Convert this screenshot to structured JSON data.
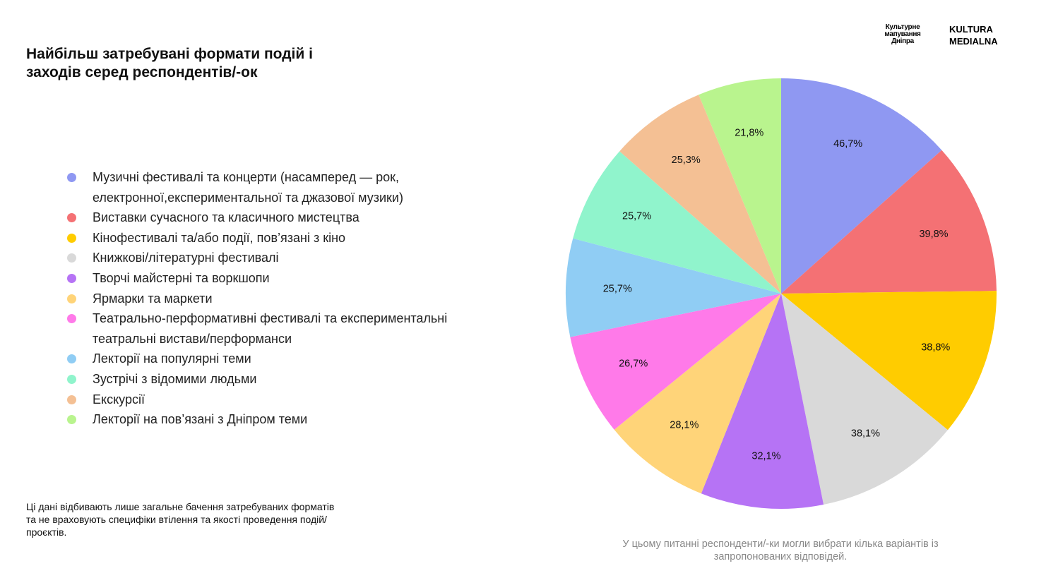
{
  "chart_data": {
    "type": "pie",
    "title": "Найбільш затребувані формати подій і заходів серед респондентів/-ок",
    "categories": [
      "Музичні фестивалі та концерти (насамперед — рок, електронної,експериментальної та джазової музики)",
      "Виставки сучасного та класичного мистецтва",
      "Кінофестивалі та/або події, пов’язані з кіно",
      "Книжкові/літературні фестивалі",
      "Творчі майстерні та воркшопи",
      "Ярмарки та маркети",
      "Театрально-перформативні фестивалі та експериментальні театральні вистави/перформанси",
      "Лекторії на популярні теми",
      "Зустрічі з відомими людьми",
      "Екскурсії",
      "Лекторії на пов’язані з Дніпром теми"
    ],
    "values": [
      46.7,
      39.8,
      38.8,
      38.1,
      32.1,
      28.1,
      26.7,
      25.7,
      25.7,
      25.3,
      21.8
    ],
    "value_labels": [
      "46,7%",
      "39,8%",
      "38,8%",
      "38,1%",
      "32,1%",
      "28,1%",
      "26,7%",
      "25,7%",
      "25,7%",
      "25,3%",
      "21,8%"
    ],
    "colors": [
      "#8f98f2",
      "#f47174",
      "#ffcc00",
      "#d9d9d9",
      "#b673f5",
      "#ffd479",
      "#ff7ae9",
      "#90cdf4",
      "#90f4cc",
      "#f4c094",
      "#b9f48e"
    ],
    "note": "Ці дані відбивають лише загальне бачення затребуваних форматів та не враховують специфіки втілення та якості проведення подій/проєктів.",
    "caption": "У цьому питанні респонденти/-ки могли вибрати кілька варіантів із запропонованих відповідей."
  },
  "logos": {
    "left": [
      "Культурне",
      "мапування",
      "Дніпра"
    ],
    "right": [
      "KULTURA",
      "MEDIALNA"
    ]
  }
}
